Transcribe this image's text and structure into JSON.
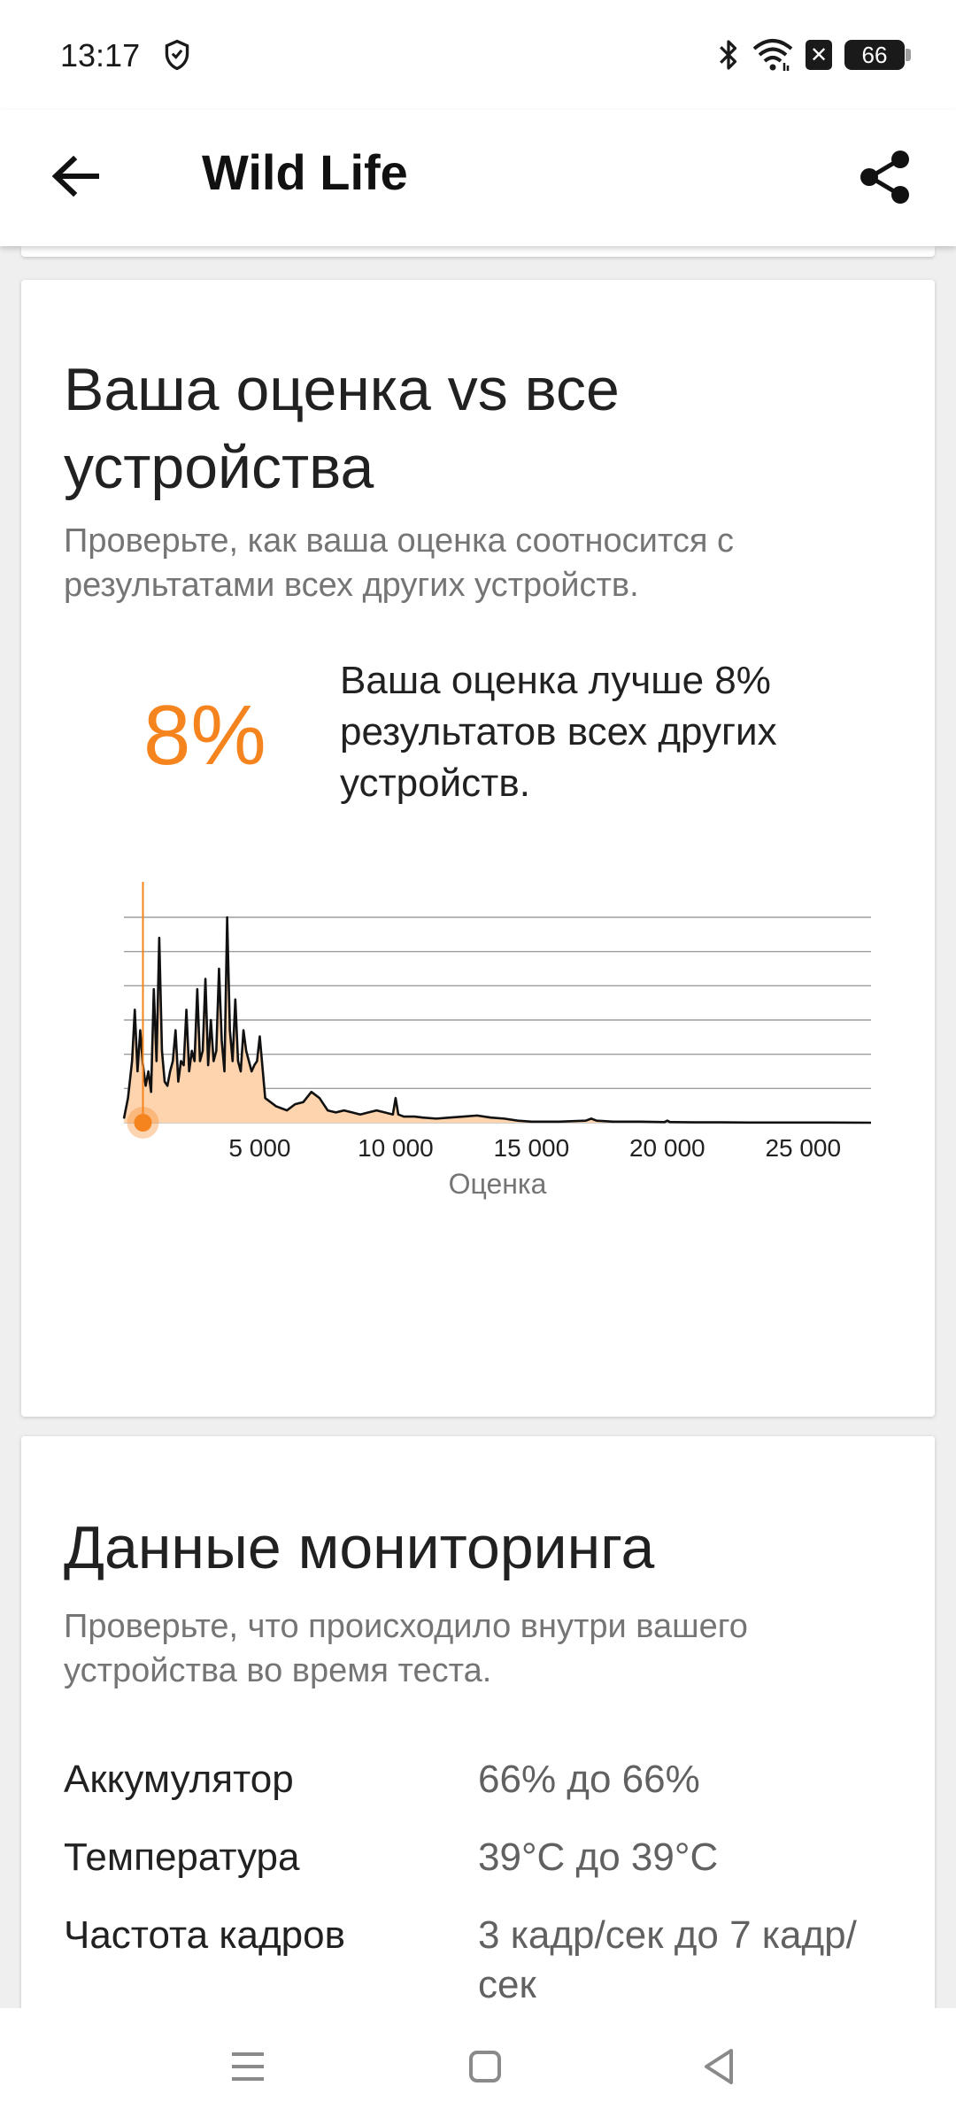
{
  "status": {
    "time": "13:17",
    "battery": "66"
  },
  "app_bar": {
    "title": "Wild Life"
  },
  "comparison": {
    "title": "Ваша оценка vs все устройства",
    "subtitle": "Проверьте, как ваша оценка соотносится с результатами всех других устройств.",
    "percent": "8%",
    "description": "Ваша оценка лучше 8% результатов всех других устройств."
  },
  "chart_data": {
    "type": "area",
    "xlabel": "Оценка",
    "ylabel": "",
    "title": "",
    "xlim": [
      0,
      27500
    ],
    "x_ticks": [
      "5 000",
      "10 000",
      "15 000",
      "20 000",
      "25 000"
    ],
    "x_tick_values": [
      5000,
      10000,
      15000,
      20000,
      25000
    ],
    "gridlines": 6,
    "your_score": 700,
    "colors": {
      "fill": "#fdd4ae",
      "line": "#111111",
      "marker": "#f5841f"
    },
    "x": [
      0,
      150,
      300,
      400,
      500,
      600,
      700,
      800,
      900,
      1000,
      1100,
      1200,
      1300,
      1400,
      1500,
      1600,
      1700,
      1800,
      1900,
      2000,
      2100,
      2200,
      2300,
      2400,
      2500,
      2600,
      2700,
      2800,
      2900,
      3000,
      3100,
      3200,
      3300,
      3400,
      3500,
      3600,
      3700,
      3800,
      3900,
      4000,
      4100,
      4200,
      4300,
      4400,
      4500,
      4600,
      4700,
      4800,
      4900,
      5000,
      5200,
      5400,
      5600,
      5800,
      6000,
      6300,
      6600,
      6900,
      7200,
      7500,
      7800,
      8100,
      8400,
      8700,
      9000,
      9300,
      9600,
      9900,
      10000,
      10100,
      10300,
      10700,
      11000,
      11500,
      12000,
      12500,
      13000,
      13500,
      14000,
      14500,
      15000,
      16000,
      17000,
      17200,
      17400,
      18000,
      19000,
      19900,
      20000,
      20100,
      21000,
      22000,
      23000,
      24000,
      25000,
      26000,
      27500
    ],
    "y": [
      0.02,
      0.12,
      0.3,
      0.55,
      0.25,
      0.45,
      0.28,
      0.18,
      0.25,
      0.15,
      0.65,
      0.3,
      0.9,
      0.35,
      0.2,
      0.18,
      0.25,
      0.3,
      0.45,
      0.2,
      0.3,
      0.28,
      0.55,
      0.25,
      0.35,
      0.3,
      0.65,
      0.3,
      0.35,
      0.7,
      0.28,
      0.5,
      0.3,
      0.35,
      0.75,
      0.4,
      0.25,
      1.0,
      0.45,
      0.3,
      0.6,
      0.3,
      0.25,
      0.45,
      0.35,
      0.3,
      0.25,
      0.28,
      0.3,
      0.42,
      0.12,
      0.1,
      0.08,
      0.07,
      0.06,
      0.09,
      0.1,
      0.15,
      0.12,
      0.06,
      0.05,
      0.06,
      0.05,
      0.04,
      0.05,
      0.06,
      0.05,
      0.04,
      0.12,
      0.04,
      0.03,
      0.03,
      0.025,
      0.02,
      0.025,
      0.03,
      0.035,
      0.025,
      0.02,
      0.01,
      0.005,
      0.005,
      0.01,
      0.02,
      0.01,
      0.005,
      0.005,
      0.003,
      0.01,
      0.003,
      0.002,
      0.002,
      0.001,
      0.001,
      0.001,
      0.001,
      0.0
    ]
  },
  "monitoring": {
    "title": "Данные мониторинга",
    "subtitle": "Проверьте, что происходило внутри вашего устройства во время теста.",
    "rows": [
      {
        "label": "Аккумулятор",
        "value": "66% до 66%"
      },
      {
        "label": "Температура",
        "value": "39°C до 39°C"
      },
      {
        "label": "Частота кадров",
        "value": "3 кадр/сек до 7 кадр/сек"
      }
    ]
  },
  "icons": {
    "back": "arrow-left-icon",
    "share": "share-icon",
    "shield": "shield-icon",
    "bluetooth": "bluetooth-icon",
    "wifi": "wifi-icon",
    "nav_menu": "menu-icon",
    "nav_home": "home-icon",
    "nav_back": "back-triangle-icon"
  }
}
